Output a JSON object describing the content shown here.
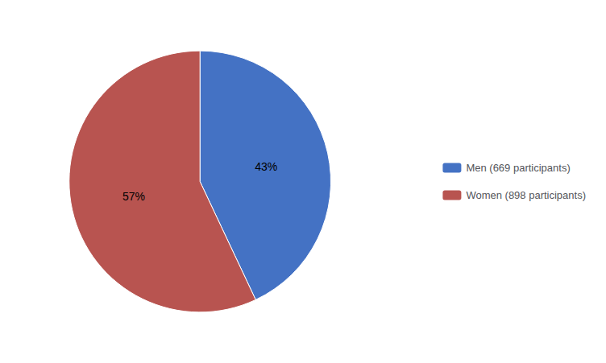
{
  "chart_data": {
    "type": "pie",
    "categories": [
      "Men (669 participants)",
      "Women (898 participants)"
    ],
    "values": [
      43,
      57
    ],
    "value_labels": [
      "43%",
      "57%"
    ],
    "colors": [
      "#4472C4",
      "#B85450"
    ],
    "data_labels": true,
    "legend": "right"
  }
}
